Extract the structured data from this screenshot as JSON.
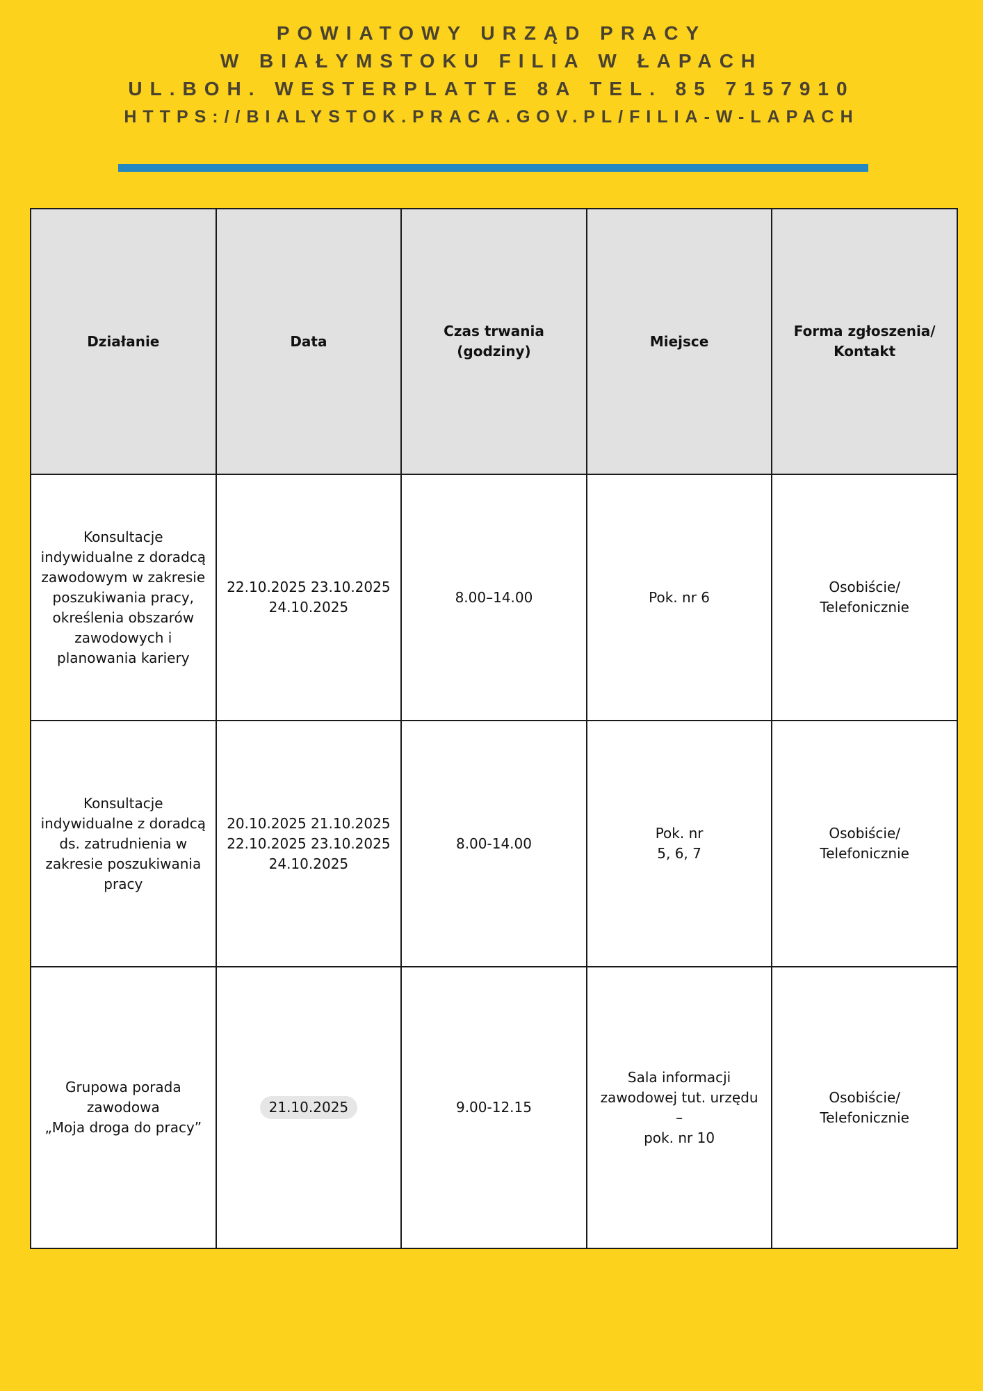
{
  "header": {
    "line1": "POWIATOWY URZĄD PRACY",
    "line2": "W BIAŁYMSTOKU FILIA W ŁAPACH",
    "line3": "UL.BOH. WESTERPLATTE 8A TEL. 85 7157910",
    "line4": "HTTPS://BIALYSTOK.PRACA.GOV.PL/FILIA-W-LAPACH"
  },
  "colors": {
    "background": "#fcd21c",
    "accent_bar": "#2387c2",
    "header_row": "#e1e1e1"
  },
  "table": {
    "columns": [
      "Działanie",
      "Data",
      "Czas trwania\n(godziny)",
      "Miejsce",
      "Forma zgłoszenia/\nKontakt"
    ],
    "rows": [
      [
        "Konsultacje\nindywidualne z doradcą\nzawodowym w zakresie\nposzukiwania pracy,\nokreślenia obszarów\nzawodowych i\nplanowania kariery",
        "22.10.2025 23.10.2025\n24.10.2025",
        "8.00–14.00",
        "Pok. nr 6",
        "Osobiście/\nTelefonicznie"
      ],
      [
        "Konsultacje\nindywidualne z doradcą\nds. zatrudnienia w\nzakresie poszukiwania\npracy",
        "20.10.2025 21.10.2025\n22.10.2025 23.10.2025\n24.10.2025",
        "8.00-14.00",
        "Pok. nr\n5, 6, 7",
        "Osobiście/\nTelefonicznie"
      ],
      [
        "Grupowa porada\nzawodowa\n„Moja droga do pracy”",
        "21.10.2025",
        "9.00-12.15",
        "Sala informacji\nzawodowej tut. urzędu\n–\npok. nr 10",
        "Osobiście/\nTelefonicznie"
      ]
    ]
  }
}
